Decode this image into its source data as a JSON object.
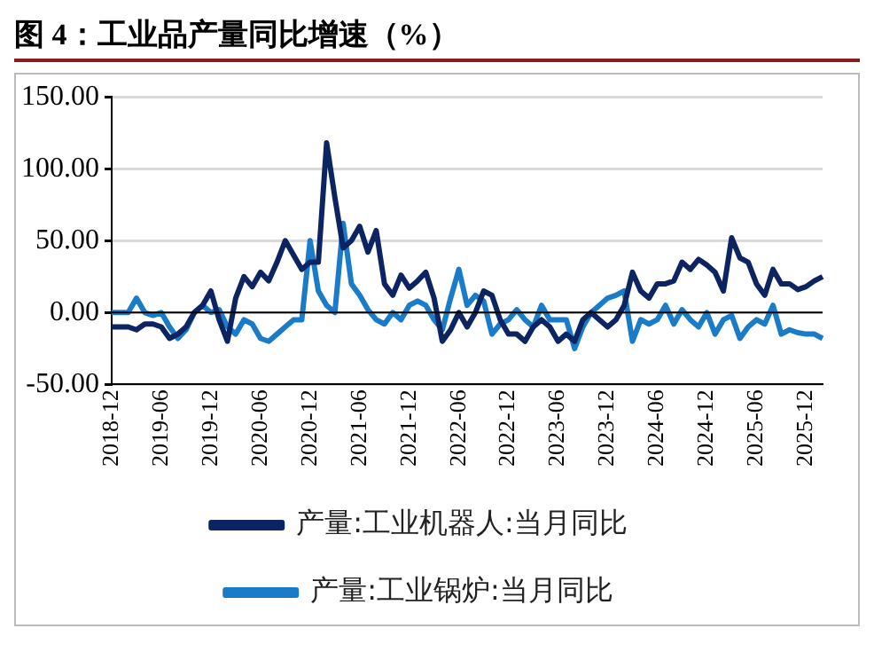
{
  "chart_data": {
    "type": "line",
    "title": "图 4：工业品产量同比增速（%）",
    "categories": [
      "2018-12",
      null,
      null,
      null,
      null,
      null,
      "2019-06",
      null,
      null,
      null,
      null,
      null,
      "2019-12",
      null,
      null,
      null,
      null,
      null,
      "2020-06",
      null,
      null,
      null,
      null,
      null,
      "2020-12",
      null,
      null,
      null,
      null,
      null,
      "2021-06",
      null,
      null,
      null,
      null,
      null,
      "2021-12",
      null,
      null,
      null,
      null,
      null,
      "2022-06",
      null,
      null,
      null,
      null,
      null,
      "2022-12",
      null,
      null,
      null,
      null,
      null,
      "2023-06",
      null,
      null,
      null,
      null,
      null,
      "2023-12",
      null,
      null,
      null,
      null,
      null,
      "2024-06",
      null,
      null,
      null,
      null,
      null,
      "2024-12",
      null,
      null,
      null,
      null,
      null,
      "2025-06",
      null,
      null,
      null,
      null,
      null,
      "2025-12",
      null,
      null
    ],
    "series": [
      {
        "name": "产量:工业机器人:当月同比",
        "color": "#0c2461",
        "values": [
          -10,
          -10,
          -10,
          -12,
          -8,
          -8,
          -10,
          -18,
          -15,
          -10,
          0,
          5,
          15,
          -5,
          -20,
          10,
          25,
          18,
          28,
          22,
          35,
          50,
          40,
          30,
          35,
          35,
          118,
          80,
          45,
          50,
          60,
          42,
          57,
          20,
          12,
          26,
          17,
          22,
          28,
          10,
          -20,
          -12,
          0,
          -10,
          0,
          15,
          12,
          -5,
          -15,
          -15,
          -20,
          -10,
          -5,
          -10,
          -20,
          -15,
          -20,
          -5,
          0,
          -5,
          -10,
          -5,
          5,
          28,
          15,
          10,
          20,
          20,
          22,
          35,
          30,
          37,
          33,
          28,
          15,
          52,
          38,
          35,
          20,
          12,
          30,
          20,
          20,
          16,
          18,
          22,
          25
        ]
      },
      {
        "name": "产量:工业锅炉:当月同比",
        "color": "#1a7bc8",
        "values": [
          0,
          0,
          0,
          10,
          0,
          -2,
          0,
          -10,
          -18,
          -12,
          0,
          5,
          0,
          2,
          -10,
          -15,
          -5,
          -8,
          -18,
          -20,
          -15,
          -10,
          -5,
          -5,
          50,
          15,
          5,
          0,
          62,
          20,
          12,
          2,
          -5,
          -8,
          0,
          -5,
          5,
          8,
          5,
          -5,
          -12,
          10,
          30,
          5,
          12,
          8,
          -15,
          -8,
          -5,
          2,
          -5,
          -10,
          5,
          -5,
          -5,
          -5,
          -25,
          -10,
          0,
          5,
          10,
          12,
          15,
          -20,
          -5,
          -8,
          -5,
          5,
          -8,
          2,
          -5,
          -10,
          0,
          -15,
          -5,
          -2,
          -18,
          -10,
          -5,
          -8,
          5,
          -15,
          -12,
          -14,
          -15,
          -15,
          -18
        ]
      }
    ],
    "ylim": [
      -50,
      150
    ],
    "yticks": [
      {
        "value": -50,
        "label": "-50.00"
      },
      {
        "value": 0,
        "label": "0.00"
      },
      {
        "value": 50,
        "label": "50.00"
      },
      {
        "value": 100,
        "label": "100.00"
      },
      {
        "value": 150,
        "label": "150.00"
      }
    ],
    "grid": "y",
    "legend": "bottom",
    "marker": "none",
    "line_style": "solid"
  }
}
